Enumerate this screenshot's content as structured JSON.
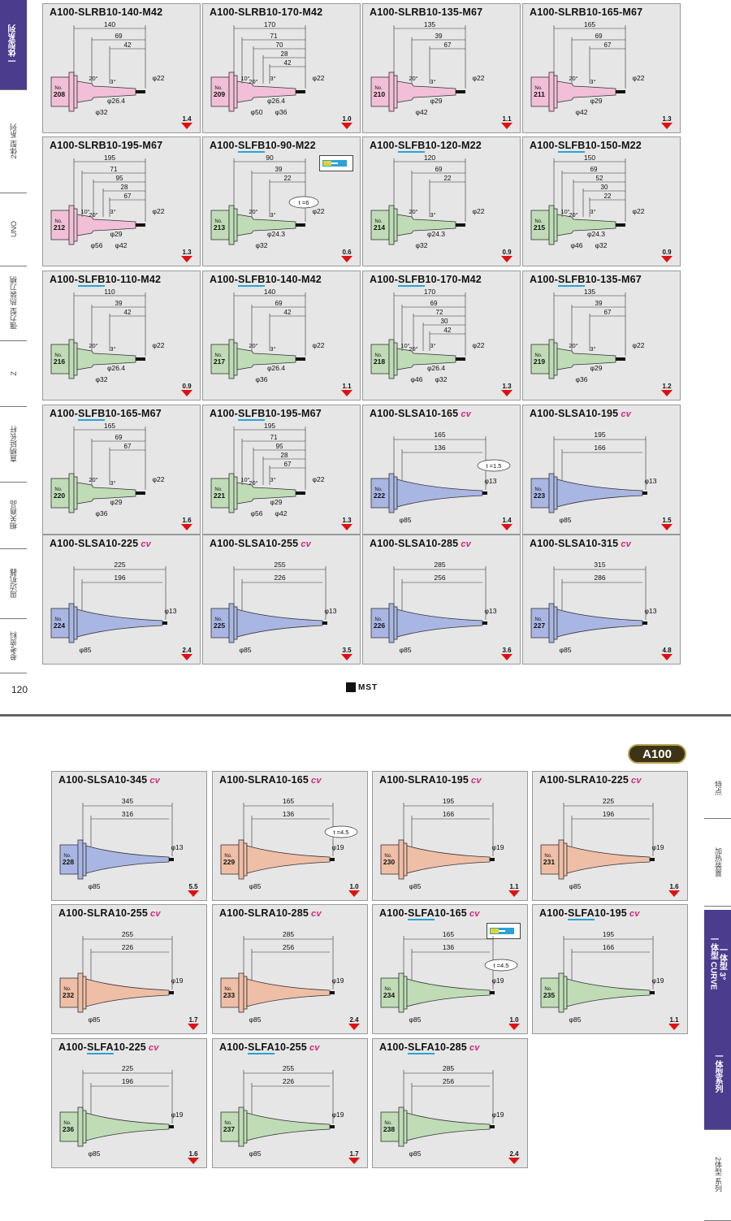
{
  "page": {
    "number": "120",
    "brand": "MST",
    "series_badge": "A100"
  },
  "left_tabs": [
    {
      "label": "一体型系列",
      "active": true
    },
    {
      "label": "2体型 系列",
      "active": false
    },
    {
      "label": "UNO",
      "active": false
    },
    {
      "label": "强力型 热装刀柄",
      "active": false
    },
    {
      "label": "Z",
      "active": false
    },
    {
      "label": "直柄延长杆",
      "active": false
    },
    {
      "label": "相关商品",
      "active": false
    },
    {
      "label": "周边机器",
      "active": false
    },
    {
      "label": "参考资料",
      "active": false
    }
  ],
  "right_tabs": [
    {
      "label": "特点",
      "active": false
    },
    {
      "label": "加热装置",
      "active": false
    },
    {
      "label": "一体型 3°\n一体型 CURVE",
      "active": true
    },
    {
      "label": "一体型系列",
      "active": true
    },
    {
      "label": "2体型 系列",
      "active": false
    }
  ],
  "colors": {
    "pink": "#f2bfd8",
    "green": "#bfdcb6",
    "blue": "#a9b6e3",
    "salmon": "#efbea6",
    "accent": "#4b3c8e",
    "underline": "#2aa3d6",
    "cv": "#d0287a",
    "arrow": "#dd1111"
  },
  "cards": [
    {
      "pre": "A100-",
      "u": "",
      "post": "SLRB10-140-M42",
      "cv": false,
      "no": "208",
      "weight": "1.4",
      "type": "step",
      "color": "pink",
      "L": "140",
      "steps": [
        "69",
        "42"
      ],
      "angles": [
        "20°",
        "3°"
      ],
      "d_tip": "φ22",
      "d_mid": "φ26.4",
      "d_base": "φ32",
      "d_base2": "",
      "t": "",
      "coolant": false
    },
    {
      "pre": "A100-",
      "u": "",
      "post": "SLRB10-170-M42",
      "cv": false,
      "no": "209",
      "weight": "1.0",
      "type": "step",
      "color": "pink",
      "L": "170",
      "steps": [
        "71",
        "70",
        "28",
        "42"
      ],
      "angles": [
        "10°",
        "20°",
        "3°"
      ],
      "d_tip": "φ22",
      "d_mid": "φ26.4",
      "d_base": "φ50",
      "d_base2": "φ36",
      "t": "",
      "coolant": false
    },
    {
      "pre": "A100-",
      "u": "",
      "post": "SLRB10-135-M67",
      "cv": false,
      "no": "210",
      "weight": "1.1",
      "type": "step",
      "color": "pink",
      "L": "135",
      "steps": [
        "39",
        "67"
      ],
      "angles": [
        "20°",
        "3°"
      ],
      "d_tip": "φ22",
      "d_mid": "φ29",
      "d_base": "φ42",
      "d_base2": "",
      "t": "",
      "coolant": false
    },
    {
      "pre": "A100-",
      "u": "",
      "post": "SLRB10-165-M67",
      "cv": false,
      "no": "211",
      "weight": "1.3",
      "type": "step",
      "color": "pink",
      "L": "165",
      "steps": [
        "69",
        "67"
      ],
      "angles": [
        "20°",
        "3°"
      ],
      "d_tip": "φ22",
      "d_mid": "φ29",
      "d_base": "φ42",
      "d_base2": "",
      "t": "",
      "coolant": false
    },
    {
      "pre": "A100-",
      "u": "",
      "post": "SLRB10-195-M67",
      "cv": false,
      "no": "212",
      "weight": "1.3",
      "type": "step",
      "color": "pink",
      "L": "195",
      "steps": [
        "71",
        "95",
        "28",
        "67"
      ],
      "angles": [
        "10°",
        "20°",
        "3°"
      ],
      "d_tip": "φ22",
      "d_mid": "φ29",
      "d_base": "φ56",
      "d_base2": "φ42",
      "t": "",
      "coolant": false
    },
    {
      "pre": "A100-",
      "u": "SLFB",
      "post": "10-90-M22",
      "cv": false,
      "no": "213",
      "weight": "0.6",
      "type": "step",
      "color": "green",
      "L": "90",
      "steps": [
        "39",
        "22"
      ],
      "angles": [
        "20°",
        "3°"
      ],
      "d_tip": "φ22",
      "d_mid": "φ24.3",
      "d_base": "φ32",
      "d_base2": "",
      "t": "t =6",
      "coolant": true
    },
    {
      "pre": "A100-",
      "u": "SLFB",
      "post": "10-120-M22",
      "cv": false,
      "no": "214",
      "weight": "0.9",
      "type": "step",
      "color": "green",
      "L": "120",
      "steps": [
        "69",
        "22"
      ],
      "angles": [
        "20°",
        "3°"
      ],
      "d_tip": "φ22",
      "d_mid": "φ24.3",
      "d_base": "φ32",
      "d_base2": "",
      "t": "",
      "coolant": false
    },
    {
      "pre": "A100-",
      "u": "SLFB",
      "post": "10-150-M22",
      "cv": false,
      "no": "215",
      "weight": "0.9",
      "type": "step",
      "color": "green",
      "L": "150",
      "steps": [
        "69",
        "52",
        "30",
        "22"
      ],
      "angles": [
        "10°",
        "20°",
        "3°"
      ],
      "d_tip": "φ22",
      "d_mid": "φ24.3",
      "d_base": "φ46",
      "d_base2": "φ32",
      "t": "",
      "coolant": false
    },
    {
      "pre": "A100-",
      "u": "SLFB",
      "post": "10-110-M42",
      "cv": false,
      "no": "216",
      "weight": "0.9",
      "type": "step",
      "color": "green",
      "L": "110",
      "steps": [
        "39",
        "42"
      ],
      "angles": [
        "20°",
        "3°"
      ],
      "d_tip": "φ22",
      "d_mid": "φ26.4",
      "d_base": "φ32",
      "d_base2": "",
      "t": "",
      "coolant": false
    },
    {
      "pre": "A100-",
      "u": "SLFB",
      "post": "10-140-M42",
      "cv": false,
      "no": "217",
      "weight": "1.1",
      "type": "step",
      "color": "green",
      "L": "140",
      "steps": [
        "69",
        "42"
      ],
      "angles": [
        "20°",
        "3°"
      ],
      "d_tip": "φ22",
      "d_mid": "φ26.4",
      "d_base": "φ36",
      "d_base2": "",
      "t": "",
      "coolant": false
    },
    {
      "pre": "A100-",
      "u": "SLFB",
      "post": "10-170-M42",
      "cv": false,
      "no": "218",
      "weight": "1.3",
      "type": "step",
      "color": "green",
      "L": "170",
      "steps": [
        "69",
        "72",
        "30",
        "42"
      ],
      "angles": [
        "10°",
        "20°",
        "3°"
      ],
      "d_tip": "φ22",
      "d_mid": "φ26.4",
      "d_base": "φ46",
      "d_base2": "φ32",
      "t": "",
      "coolant": false
    },
    {
      "pre": "A100-",
      "u": "SLFB",
      "post": "10-135-M67",
      "cv": false,
      "no": "219",
      "weight": "1.2",
      "type": "step",
      "color": "green",
      "L": "135",
      "steps": [
        "39",
        "67"
      ],
      "angles": [
        "20°",
        "3°"
      ],
      "d_tip": "φ22",
      "d_mid": "φ29",
      "d_base": "φ36",
      "d_base2": "",
      "t": "",
      "coolant": false
    },
    {
      "pre": "A100-",
      "u": "SLFB",
      "post": "10-165-M67",
      "cv": false,
      "no": "220",
      "weight": "1.6",
      "type": "step",
      "color": "green",
      "L": "165",
      "steps": [
        "69",
        "67"
      ],
      "angles": [
        "20°",
        "3°"
      ],
      "d_tip": "φ22",
      "d_mid": "φ29",
      "d_base": "φ36",
      "d_base2": "",
      "t": "",
      "coolant": false
    },
    {
      "pre": "A100-",
      "u": "SLFB",
      "post": "10-195-M67",
      "cv": false,
      "no": "221",
      "weight": "1.3",
      "type": "step",
      "color": "green",
      "L": "195",
      "steps": [
        "71",
        "95",
        "28",
        "67"
      ],
      "angles": [
        "10°",
        "20°",
        "3°"
      ],
      "d_tip": "φ22",
      "d_mid": "φ29",
      "d_base": "φ56",
      "d_base2": "φ42",
      "t": "",
      "coolant": false
    },
    {
      "pre": "A100-",
      "u": "",
      "post": "SLSA10-165",
      "cv": true,
      "no": "222",
      "weight": "1.4",
      "type": "cone",
      "color": "blue",
      "L": "165",
      "L2": "136",
      "d_tip": "φ13",
      "d_base": "φ85",
      "t": "t =1.5",
      "coolant": false
    },
    {
      "pre": "A100-",
      "u": "",
      "post": "SLSA10-195",
      "cv": true,
      "no": "223",
      "weight": "1.5",
      "type": "cone",
      "color": "blue",
      "L": "195",
      "L2": "166",
      "d_tip": "φ13",
      "d_base": "φ85",
      "t": "",
      "coolant": false
    },
    {
      "pre": "A100-",
      "u": "",
      "post": "SLSA10-225",
      "cv": true,
      "no": "224",
      "weight": "2.4",
      "type": "cone",
      "color": "blue",
      "L": "225",
      "L2": "196",
      "d_tip": "φ13",
      "d_base": "φ85",
      "t": "",
      "coolant": false
    },
    {
      "pre": "A100-",
      "u": "",
      "post": "SLSA10-255",
      "cv": true,
      "no": "225",
      "weight": "3.5",
      "type": "cone",
      "color": "blue",
      "L": "255",
      "L2": "226",
      "d_tip": "φ13",
      "d_base": "φ85",
      "t": "",
      "coolant": false
    },
    {
      "pre": "A100-",
      "u": "",
      "post": "SLSA10-285",
      "cv": true,
      "no": "226",
      "weight": "3.6",
      "type": "cone",
      "color": "blue",
      "L": "285",
      "L2": "256",
      "d_tip": "φ13",
      "d_base": "φ85",
      "t": "",
      "coolant": false
    },
    {
      "pre": "A100-",
      "u": "",
      "post": "SLSA10-315",
      "cv": true,
      "no": "227",
      "weight": "4.8",
      "type": "cone",
      "color": "blue",
      "L": "315",
      "L2": "286",
      "d_tip": "φ13",
      "d_base": "φ85",
      "t": "",
      "coolant": false
    },
    {
      "pre": "A100-",
      "u": "",
      "post": "SLSA10-345",
      "cv": true,
      "no": "228",
      "weight": "5.5",
      "type": "cone",
      "color": "blue",
      "L": "345",
      "L2": "316",
      "d_tip": "φ13",
      "d_base": "φ85",
      "t": "",
      "coolant": false
    },
    {
      "pre": "A100-",
      "u": "",
      "post": "SLRA10-165",
      "cv": true,
      "no": "229",
      "weight": "1.0",
      "type": "cone",
      "color": "salmon",
      "L": "165",
      "L2": "136",
      "d_tip": "φ19",
      "d_base": "φ85",
      "t": "t =4.5",
      "coolant": false
    },
    {
      "pre": "A100-",
      "u": "",
      "post": "SLRA10-195",
      "cv": true,
      "no": "230",
      "weight": "1.1",
      "type": "cone",
      "color": "salmon",
      "L": "195",
      "L2": "166",
      "d_tip": "φ19",
      "d_base": "φ85",
      "t": "",
      "coolant": false
    },
    {
      "pre": "A100-",
      "u": "",
      "post": "SLRA10-225",
      "cv": true,
      "no": "231",
      "weight": "1.6",
      "type": "cone",
      "color": "salmon",
      "L": "225",
      "L2": "196",
      "d_tip": "φ19",
      "d_base": "φ85",
      "t": "",
      "coolant": false
    },
    {
      "pre": "A100-",
      "u": "",
      "post": "SLRA10-255",
      "cv": true,
      "no": "232",
      "weight": "1.7",
      "type": "cone",
      "color": "salmon",
      "L": "255",
      "L2": "226",
      "d_tip": "φ19",
      "d_base": "φ85",
      "t": "",
      "coolant": false
    },
    {
      "pre": "A100-",
      "u": "",
      "post": "SLRA10-285",
      "cv": true,
      "no": "233",
      "weight": "2.4",
      "type": "cone",
      "color": "salmon",
      "L": "285",
      "L2": "256",
      "d_tip": "φ19",
      "d_base": "φ85",
      "t": "",
      "coolant": false
    },
    {
      "pre": "A100-",
      "u": "SLFA",
      "post": "10-165",
      "cv": true,
      "no": "234",
      "weight": "1.0",
      "type": "cone",
      "color": "green",
      "L": "165",
      "L2": "136",
      "d_tip": "φ19",
      "d_base": "φ85",
      "t": "t =4.5",
      "coolant": true
    },
    {
      "pre": "A100-",
      "u": "SLFA",
      "post": "10-195",
      "cv": true,
      "no": "235",
      "weight": "1.1",
      "type": "cone",
      "color": "green",
      "L": "195",
      "L2": "166",
      "d_tip": "φ19",
      "d_base": "φ85",
      "t": "",
      "coolant": false
    },
    {
      "pre": "A100-",
      "u": "SLFA",
      "post": "10-225",
      "cv": true,
      "no": "236",
      "weight": "1.6",
      "type": "cone",
      "color": "green",
      "L": "225",
      "L2": "196",
      "d_tip": "φ19",
      "d_base": "φ85",
      "t": "",
      "coolant": false
    },
    {
      "pre": "A100-",
      "u": "SLFA",
      "post": "10-255",
      "cv": true,
      "no": "237",
      "weight": "1.7",
      "type": "cone",
      "color": "green",
      "L": "255",
      "L2": "226",
      "d_tip": "φ19",
      "d_base": "φ85",
      "t": "",
      "coolant": false
    },
    {
      "pre": "A100-",
      "u": "SLFA",
      "post": "10-285",
      "cv": true,
      "no": "238",
      "weight": "2.4",
      "type": "cone",
      "color": "green",
      "L": "285",
      "L2": "256",
      "d_tip": "φ19",
      "d_base": "φ85",
      "t": "",
      "coolant": false
    }
  ],
  "labels": {
    "no": "No.",
    "cv": "cv"
  }
}
